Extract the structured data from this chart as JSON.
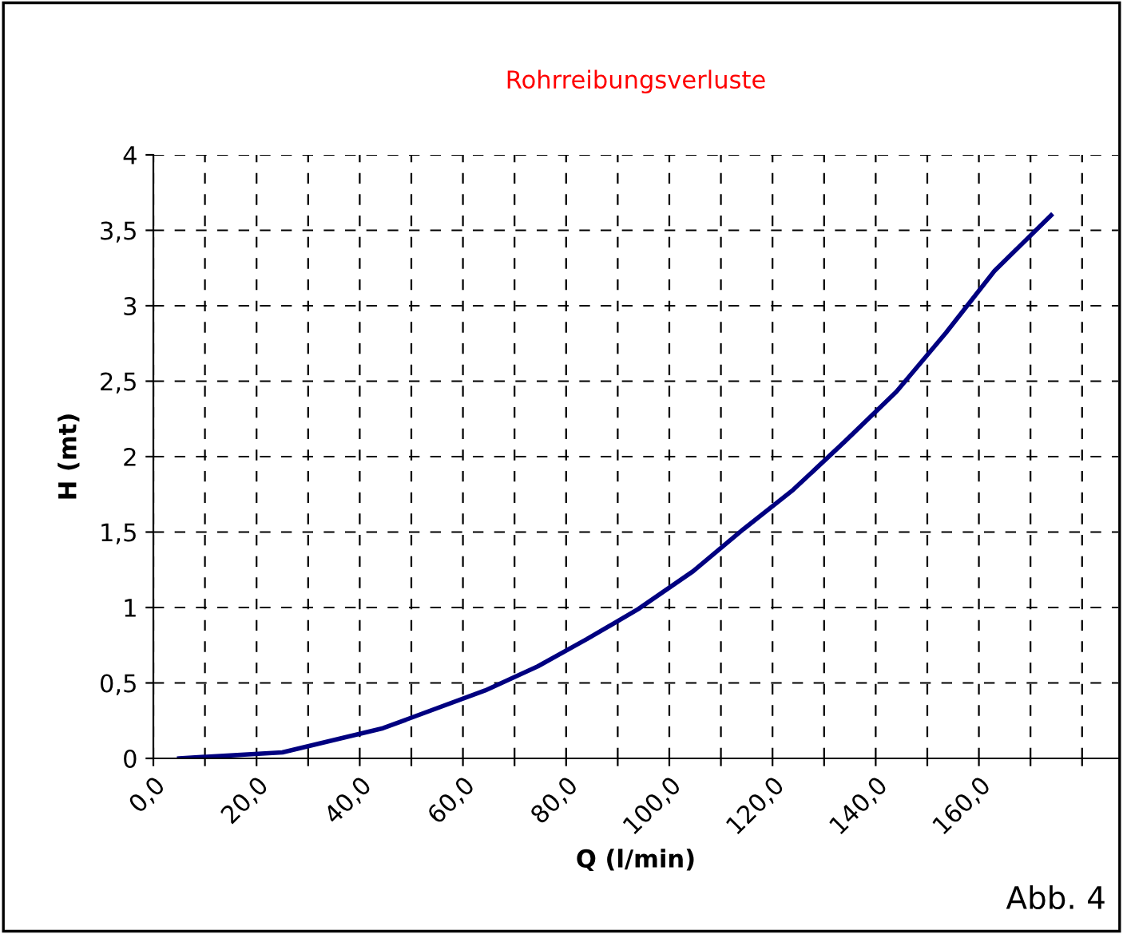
{
  "chart_data": {
    "type": "line",
    "title": "Rohrreibungsverluste",
    "xlabel": "Q (l/min)",
    "ylabel": "H (mt)",
    "annotations": [
      "Abb. 4"
    ],
    "x": [
      5,
      25,
      44.5,
      64.3,
      74.5,
      84,
      94,
      104.6,
      114.4,
      124,
      134,
      144,
      153.6,
      163,
      174
    ],
    "series": [
      {
        "color": "#000080",
        "values": [
          0,
          0.04,
          0.2,
          0.45,
          0.61,
          0.79,
          0.99,
          1.24,
          1.52,
          1.78,
          2.1,
          2.43,
          2.82,
          3.23,
          3.6
        ]
      }
    ],
    "xlim": [
      0,
      187
    ],
    "xticks": [
      {
        "value": 0,
        "label": "0,0"
      },
      {
        "value": 10,
        "label": null
      },
      {
        "value": 20,
        "label": "20,0"
      },
      {
        "value": 30,
        "label": null
      },
      {
        "value": 40,
        "label": "40,0"
      },
      {
        "value": 50,
        "label": null
      },
      {
        "value": 60,
        "label": "60,0"
      },
      {
        "value": 70,
        "label": null
      },
      {
        "value": 80,
        "label": "80,0"
      },
      {
        "value": 90,
        "label": null
      },
      {
        "value": 100,
        "label": "100,0"
      },
      {
        "value": 110,
        "label": null
      },
      {
        "value": 120,
        "label": "120,0"
      },
      {
        "value": 130,
        "label": null
      },
      {
        "value": 140,
        "label": "140,0"
      },
      {
        "value": 150,
        "label": null
      },
      {
        "value": 160,
        "label": "160,0"
      },
      {
        "value": 170,
        "label": null
      },
      {
        "value": 180,
        "label": null
      }
    ],
    "ylim": [
      0,
      4
    ],
    "yticks": [
      0,
      {
        "value": 0.5,
        "label": "0,5"
      },
      1,
      {
        "value": 1.5,
        "label": "1,5"
      },
      2,
      {
        "value": 2.5,
        "label": "2,5"
      },
      3,
      {
        "value": 3.5,
        "label": "3,5"
      },
      4
    ],
    "grid": true,
    "line_style": "solid",
    "marker": "none",
    "legend": false
  }
}
